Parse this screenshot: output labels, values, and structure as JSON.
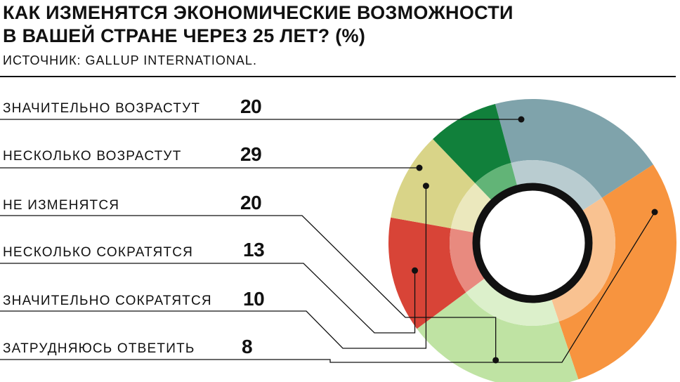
{
  "header": {
    "title_line1": "КАК ИЗМЕНЯТСЯ ЭКОНОМИЧЕСКИЕ ВОЗМОЖНОСТИ",
    "title_line2": "В ВАШЕЙ СТРАНЕ ЧЕРЕЗ 25 ЛЕТ? (%)",
    "source": "ИСТОЧНИК: GALLUP INTERNATIONAL."
  },
  "chart_data": {
    "type": "pie",
    "title": "КАК ИЗМЕНЯТСЯ ЭКОНОМИЧЕСКИЕ ВОЗМОЖНОСТИ В ВАШЕЙ СТРАНЕ ЧЕРЕЗ 25 ЛЕТ? (%)",
    "categories": [
      "ЗНАЧИТЕЛЬНО ВОЗРАСТУТ",
      "НЕСКОЛЬКО ВОЗРАСТУТ",
      "НЕ ИЗМЕНЯТСЯ",
      "НЕСКОЛЬКО СОКРАТЯТСЯ",
      "ЗНАЧИТЕЛЬНО СОКРАТЯТСЯ",
      "ЗАТРУДНЯЮСЬ ОТВЕТИТЬ"
    ],
    "values": [
      20,
      29,
      20,
      13,
      10,
      8
    ],
    "value_labels": [
      "20",
      "29",
      "20",
      "13",
      "10",
      "8"
    ],
    "colors": [
      "#7fa3ab",
      "#f7943f",
      "#bfe3a3",
      "#d84437",
      "#d9d488",
      "#11803b"
    ],
    "inner_colors": [
      "#b9ccd0",
      "#f9c291",
      "#dcf0cb",
      "#e88a7f",
      "#ebe8bd",
      "#62b477"
    ]
  }
}
